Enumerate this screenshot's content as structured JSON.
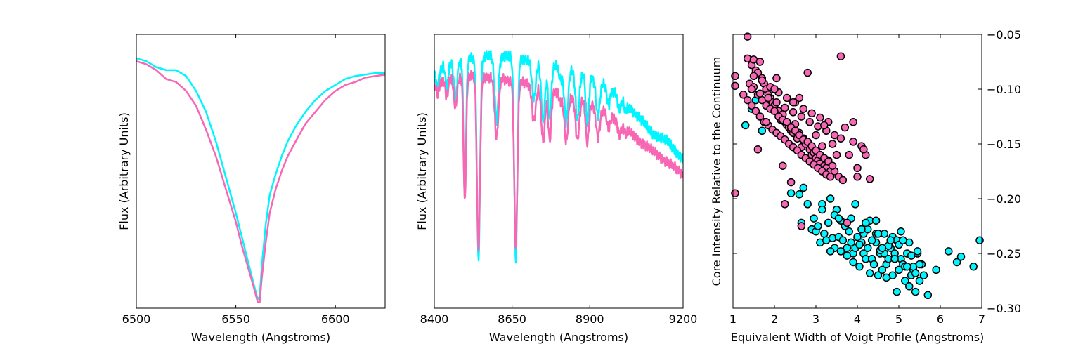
{
  "chart_data": [
    {
      "type": "line",
      "xlabel": "Wavelength (Angstroms)",
      "ylabel": "Flux (Arbitrary Units)",
      "xlim": [
        6500,
        6625
      ],
      "ylim": [
        0.13,
        1.05
      ],
      "xticks": [
        6500,
        6550,
        6600
      ],
      "yticks_shown": false,
      "series": [
        {
          "color": "#00f5ff",
          "x": [
            6500,
            6505,
            6510,
            6515,
            6520,
            6525,
            6530,
            6535,
            6540,
            6545,
            6550,
            6553,
            6556,
            6559,
            6561,
            6562,
            6563,
            6565,
            6567,
            6570,
            6573,
            6576,
            6580,
            6585,
            6590,
            6595,
            6600,
            6605,
            6610,
            6615,
            6620,
            6625
          ],
          "y": [
            0.97,
            0.96,
            0.94,
            0.93,
            0.93,
            0.91,
            0.86,
            0.79,
            0.69,
            0.57,
            0.45,
            0.37,
            0.29,
            0.21,
            0.16,
            0.17,
            0.27,
            0.41,
            0.51,
            0.58,
            0.64,
            0.69,
            0.74,
            0.79,
            0.83,
            0.86,
            0.88,
            0.9,
            0.91,
            0.915,
            0.92,
            0.92
          ]
        },
        {
          "color": "#f767b4",
          "x": [
            6500,
            6505,
            6510,
            6515,
            6520,
            6525,
            6530,
            6535,
            6540,
            6545,
            6550,
            6553,
            6556,
            6559,
            6561,
            6562,
            6563,
            6565,
            6567,
            6570,
            6573,
            6576,
            6580,
            6585,
            6590,
            6595,
            6600,
            6605,
            6610,
            6615,
            6620,
            6625
          ],
          "y": [
            0.96,
            0.95,
            0.93,
            0.9,
            0.89,
            0.86,
            0.81,
            0.73,
            0.64,
            0.53,
            0.42,
            0.34,
            0.27,
            0.2,
            0.15,
            0.15,
            0.23,
            0.35,
            0.45,
            0.53,
            0.59,
            0.64,
            0.69,
            0.75,
            0.79,
            0.83,
            0.86,
            0.88,
            0.89,
            0.905,
            0.91,
            0.915
          ]
        }
      ]
    },
    {
      "type": "line",
      "xlabel": "Wavelength (Angstroms)",
      "ylabel": "Flux (Arbitrary Units)",
      "xlim": [
        8400,
        9200
      ],
      "ylim": [
        0.13,
        1.05
      ],
      "xticks": [
        8400,
        8650,
        8900,
        9200
      ],
      "yticks_shown": false,
      "series": [
        {
          "color": "#00f5ff",
          "base": [
            [
              8400,
              0.93
            ],
            [
              8450,
              0.95
            ],
            [
              8500,
              0.965
            ],
            [
              8550,
              0.975
            ],
            [
              8600,
              0.98
            ],
            [
              8650,
              0.975
            ],
            [
              8700,
              0.965
            ],
            [
              8750,
              0.955
            ],
            [
              8800,
              0.94
            ],
            [
              8850,
              0.93
            ],
            [
              8900,
              0.91
            ],
            [
              8950,
              0.88
            ],
            [
              9000,
              0.84
            ],
            [
              9050,
              0.78
            ],
            [
              9100,
              0.72
            ],
            [
              9150,
              0.69
            ],
            [
              9200,
              0.63
            ]
          ],
          "lines": [
            [
              8410,
              0.06,
              5
            ],
            [
              8440,
              0.08,
              4
            ],
            [
              8468,
              0.12,
              5
            ],
            [
              8498,
              0.47,
              4
            ],
            [
              8542,
              0.68,
              5
            ],
            [
              8600,
              0.22,
              6
            ],
            [
              8662,
              0.68,
              5
            ],
            [
              8720,
              0.13,
              6
            ],
            [
              8750,
              0.2,
              6
            ],
            [
              8771,
              0.19,
              5
            ],
            [
              8806,
              0.04,
              5
            ],
            [
              8824,
              0.18,
              6
            ],
            [
              8860,
              0.16,
              6
            ],
            [
              8892,
              0.16,
              5
            ],
            [
              8926,
              0.12,
              6
            ],
            [
              8960,
              0.06,
              5
            ],
            [
              8995,
              0.05,
              5
            ],
            [
              9015,
              0.03,
              5
            ]
          ]
        },
        {
          "color": "#f767b4",
          "base": [
            [
              8400,
              0.89
            ],
            [
              8450,
              0.9
            ],
            [
              8500,
              0.91
            ],
            [
              8550,
              0.91
            ],
            [
              8600,
              0.905
            ],
            [
              8650,
              0.895
            ],
            [
              8700,
              0.885
            ],
            [
              8750,
              0.87
            ],
            [
              8800,
              0.855
            ],
            [
              8850,
              0.84
            ],
            [
              8900,
              0.82
            ],
            [
              8950,
              0.79
            ],
            [
              9000,
              0.75
            ],
            [
              9050,
              0.7
            ],
            [
              9100,
              0.66
            ],
            [
              9150,
              0.62
            ],
            [
              9200,
              0.58
            ]
          ],
          "lines": [
            [
              8410,
              0.04,
              5
            ],
            [
              8440,
              0.06,
              4
            ],
            [
              8468,
              0.1,
              5
            ],
            [
              8498,
              0.42,
              4
            ],
            [
              8542,
              0.58,
              5
            ],
            [
              8600,
              0.2,
              6
            ],
            [
              8662,
              0.56,
              5
            ],
            [
              8720,
              0.12,
              6
            ],
            [
              8750,
              0.18,
              6
            ],
            [
              8771,
              0.17,
              5
            ],
            [
              8806,
              0.03,
              5
            ],
            [
              8824,
              0.16,
              6
            ],
            [
              8860,
              0.14,
              6
            ],
            [
              8892,
              0.14,
              5
            ],
            [
              8926,
              0.1,
              6
            ],
            [
              8960,
              0.05,
              5
            ],
            [
              8995,
              0.04,
              5
            ],
            [
              9015,
              0.02,
              5
            ]
          ]
        }
      ]
    },
    {
      "type": "scatter",
      "xlabel": "Equivalent Width of Voigt Profile (Angstroms)",
      "ylabel": "Core Intensity Relative to the Continuum",
      "xlim": [
        1,
        7
      ],
      "ylim": [
        -0.3,
        -0.05
      ],
      "xticks": [
        1,
        2,
        3,
        4,
        5,
        6,
        7
      ],
      "yticks": [
        -0.05,
        -0.1,
        -0.15,
        -0.2,
        -0.25,
        -0.3
      ],
      "ytick_labels": [
        "−0.05",
        "−0.10",
        "−0.15",
        "−0.20",
        "−0.25",
        "−0.30"
      ],
      "yaxis_side": "right",
      "series": [
        {
          "color": "#00f5ff",
          "x": [
            1.3,
            1.45,
            1.55,
            1.7,
            2.4,
            2.6,
            2.65,
            2.7,
            2.8,
            2.9,
            2.95,
            3.0,
            3.1,
            3.15,
            3.2,
            3.25,
            3.3,
            3.35,
            3.4,
            3.45,
            3.5,
            3.55,
            3.6,
            3.65,
            3.7,
            3.75,
            3.8,
            3.85,
            3.9,
            3.95,
            4.0,
            4.05,
            4.1,
            4.15,
            4.2,
            4.25,
            4.3,
            4.35,
            4.4,
            4.45,
            4.5,
            4.55,
            4.6,
            4.65,
            4.7,
            4.75,
            4.8,
            4.85,
            4.9,
            4.95,
            5.0,
            5.05,
            5.1,
            5.15,
            5.2,
            5.25,
            5.3,
            5.35,
            5.4,
            5.45,
            5.5,
            5.55,
            5.6,
            5.7,
            5.9,
            6.2,
            6.4,
            6.5,
            6.8,
            6.95,
            3.05,
            3.45,
            3.95,
            4.45,
            4.85,
            5.25,
            5.45,
            4.15,
            4.75,
            5.05,
            3.6,
            3.9,
            4.3,
            4.7,
            5.15,
            5.35,
            4.55,
            4.95,
            3.35,
            3.75,
            4.05,
            4.65,
            5.0,
            5.3,
            5.5,
            4.25,
            4.45,
            4.8,
            3.15,
            3.55,
            4.1,
            4.35,
            4.6,
            4.9,
            5.2,
            5.4,
            3.85,
            4.2,
            4.5,
            5.1
          ],
          "y": [
            -0.133,
            -0.118,
            -0.11,
            -0.138,
            -0.195,
            -0.196,
            -0.222,
            -0.19,
            -0.205,
            -0.228,
            -0.218,
            -0.23,
            -0.24,
            -0.205,
            -0.232,
            -0.238,
            -0.222,
            -0.2,
            -0.236,
            -0.245,
            -0.21,
            -0.235,
            -0.22,
            -0.238,
            -0.225,
            -0.245,
            -0.23,
            -0.24,
            -0.25,
            -0.245,
            -0.235,
            -0.262,
            -0.24,
            -0.25,
            -0.255,
            -0.245,
            -0.22,
            -0.255,
            -0.26,
            -0.24,
            -0.27,
            -0.25,
            -0.265,
            -0.25,
            -0.26,
            -0.255,
            -0.245,
            -0.27,
            -0.25,
            -0.285,
            -0.265,
            -0.255,
            -0.26,
            -0.275,
            -0.25,
            -0.28,
            -0.27,
            -0.265,
            -0.285,
            -0.25,
            -0.275,
            -0.26,
            -0.27,
            -0.288,
            -0.265,
            -0.248,
            -0.258,
            -0.253,
            -0.262,
            -0.238,
            -0.225,
            -0.215,
            -0.205,
            -0.22,
            -0.235,
            -0.24,
            -0.248,
            -0.232,
            -0.243,
            -0.23,
            -0.248,
            -0.258,
            -0.268,
            -0.272,
            -0.262,
            -0.262,
            -0.247,
            -0.238,
            -0.248,
            -0.252,
            -0.242,
            -0.232,
            -0.242,
            -0.252,
            -0.26,
            -0.228,
            -0.232,
            -0.238,
            -0.21,
            -0.218,
            -0.228,
            -0.238,
            -0.245,
            -0.255,
            -0.262,
            -0.268,
            -0.218,
            -0.222,
            -0.232,
            -0.238
          ]
        },
        {
          "color": "#f767b4",
          "x": [
            1.05,
            1.05,
            1.05,
            1.35,
            1.35,
            1.45,
            1.5,
            1.55,
            1.6,
            1.65,
            1.7,
            1.75,
            1.8,
            1.85,
            1.9,
            1.95,
            2.0,
            2.05,
            2.1,
            2.15,
            2.2,
            2.25,
            2.3,
            2.35,
            2.4,
            2.45,
            2.5,
            2.55,
            2.6,
            2.65,
            2.7,
            2.75,
            2.8,
            2.85,
            2.9,
            2.95,
            3.0,
            3.05,
            3.1,
            3.15,
            3.2,
            3.25,
            3.3,
            3.35,
            3.4,
            3.45,
            3.5,
            3.55,
            3.6,
            3.65,
            3.7,
            3.8,
            3.9,
            4.0,
            4.1,
            4.2,
            4.3,
            1.4,
            1.5,
            1.6,
            1.7,
            1.8,
            1.9,
            2.0,
            2.1,
            2.2,
            2.3,
            2.4,
            2.5,
            2.6,
            2.7,
            2.8,
            2.9,
            3.0,
            3.1,
            3.2,
            3.3,
            3.4,
            1.25,
            1.35,
            1.45,
            1.55,
            1.65,
            1.75,
            1.85,
            1.95,
            2.05,
            2.15,
            2.25,
            2.35,
            2.45,
            2.55,
            2.65,
            2.75,
            2.85,
            2.95,
            3.05,
            3.15,
            3.25,
            3.35,
            1.5,
            1.7,
            1.9,
            2.1,
            2.3,
            2.5,
            2.7,
            2.9,
            3.1,
            3.3,
            1.45,
            1.65,
            1.85,
            2.05,
            2.25,
            2.45,
            2.65,
            2.85,
            3.05,
            3.25,
            3.45,
            1.6,
            1.8,
            2.0,
            2.2,
            2.4,
            2.6,
            2.8,
            3.0,
            3.2,
            3.6,
            3.9,
            4.15,
            2.25,
            2.65,
            3.75,
            4.0,
            2.45
          ],
          "y": [
            -0.088,
            -0.097,
            -0.195,
            -0.052,
            -0.072,
            -0.078,
            -0.073,
            -0.083,
            -0.085,
            -0.075,
            -0.09,
            -0.095,
            -0.1,
            -0.105,
            -0.108,
            -0.112,
            -0.115,
            -0.09,
            -0.12,
            -0.128,
            -0.123,
            -0.13,
            -0.133,
            -0.135,
            -0.138,
            -0.14,
            -0.132,
            -0.145,
            -0.14,
            -0.153,
            -0.145,
            -0.15,
            -0.148,
            -0.155,
            -0.16,
            -0.158,
            -0.163,
            -0.165,
            -0.168,
            -0.152,
            -0.17,
            -0.172,
            -0.165,
            -0.175,
            -0.15,
            -0.175,
            -0.16,
            -0.18,
            -0.145,
            -0.183,
            -0.135,
            -0.16,
            -0.148,
            -0.172,
            -0.152,
            -0.16,
            -0.182,
            -0.095,
            -0.098,
            -0.105,
            -0.11,
            -0.115,
            -0.118,
            -0.12,
            -0.125,
            -0.128,
            -0.13,
            -0.135,
            -0.138,
            -0.142,
            -0.146,
            -0.148,
            -0.152,
            -0.156,
            -0.16,
            -0.163,
            -0.166,
            -0.17,
            -0.105,
            -0.11,
            -0.115,
            -0.12,
            -0.125,
            -0.13,
            -0.133,
            -0.137,
            -0.14,
            -0.143,
            -0.146,
            -0.15,
            -0.153,
            -0.156,
            -0.16,
            -0.163,
            -0.166,
            -0.169,
            -0.172,
            -0.175,
            -0.178,
            -0.18,
            -0.088,
            -0.092,
            -0.098,
            -0.103,
            -0.108,
            -0.112,
            -0.118,
            -0.122,
            -0.126,
            -0.13,
            -0.1,
            -0.104,
            -0.108,
            -0.112,
            -0.117,
            -0.121,
            -0.125,
            -0.13,
            -0.134,
            -0.138,
            -0.142,
            -0.155,
            -0.13,
            -0.1,
            -0.17,
            -0.185,
            -0.108,
            -0.085,
            -0.142,
            -0.133,
            -0.07,
            -0.13,
            -0.155,
            -0.205,
            -0.225,
            -0.222,
            -0.18,
            -0.112
          ]
        }
      ]
    }
  ]
}
